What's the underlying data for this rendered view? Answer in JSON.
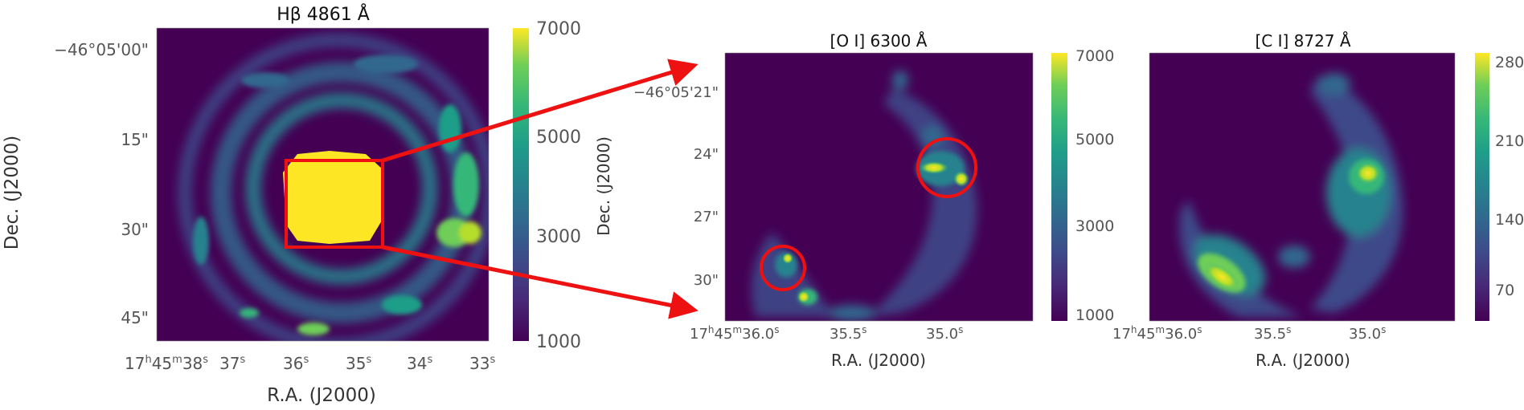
{
  "panels": [
    {
      "id": "hbeta",
      "title": "Hβ 4861 Å",
      "xlabel": "R.A. (J2000)",
      "ylabel": "Dec. (J2000)",
      "yticks": [
        "−46°05'00\"",
        "15\"",
        "30\"",
        "45\""
      ],
      "xticks": [
        {
          "pre": "17",
          "h": "h",
          "m_pre": "45",
          "m": "m",
          "s_pre": "38",
          "s": "s"
        },
        {
          "pre": "37",
          "s": "s"
        },
        {
          "pre": "36",
          "s": "s"
        },
        {
          "pre": "35",
          "s": "s"
        },
        {
          "pre": "34",
          "s": "s"
        },
        {
          "pre": "33",
          "s": "s"
        }
      ],
      "colorbar": {
        "ticks": [
          "7000",
          "5000",
          "3000",
          "1000"
        ]
      }
    },
    {
      "id": "oi",
      "title": "[O I] 6300 Å",
      "xlabel": "R.A. (J2000)",
      "ylabel": "Dec. (J2000)",
      "yticks": [
        "−46°05'21\"",
        "24\"",
        "27\"",
        "30\""
      ],
      "xticks": [
        {
          "pre": "17",
          "h": "h",
          "m_pre": "45",
          "m": "m",
          "s_pre": "36.0",
          "s": "s"
        },
        {
          "pre": "35.5",
          "s": "s"
        },
        {
          "pre": "35.0",
          "s": "s"
        }
      ],
      "colorbar": {
        "ticks": [
          "7000",
          "5000",
          "3000",
          "1000"
        ]
      }
    },
    {
      "id": "ci",
      "title": "[C I] 8727 Å",
      "xlabel": "R.A. (J2000)",
      "xticks": [
        {
          "pre": "17",
          "h": "h",
          "m_pre": "45",
          "m": "m",
          "s_pre": "36.0",
          "s": "s"
        },
        {
          "pre": "35.5",
          "s": "s"
        },
        {
          "pre": "35.0",
          "s": "s"
        }
      ],
      "colorbar": {
        "ticks": [
          "280",
          "210",
          "140",
          "70"
        ]
      }
    }
  ],
  "colors": {
    "background_dark": "#440154",
    "saturated": "#fde725",
    "annotation_red": "#ee1111"
  },
  "colormap": "viridis"
}
